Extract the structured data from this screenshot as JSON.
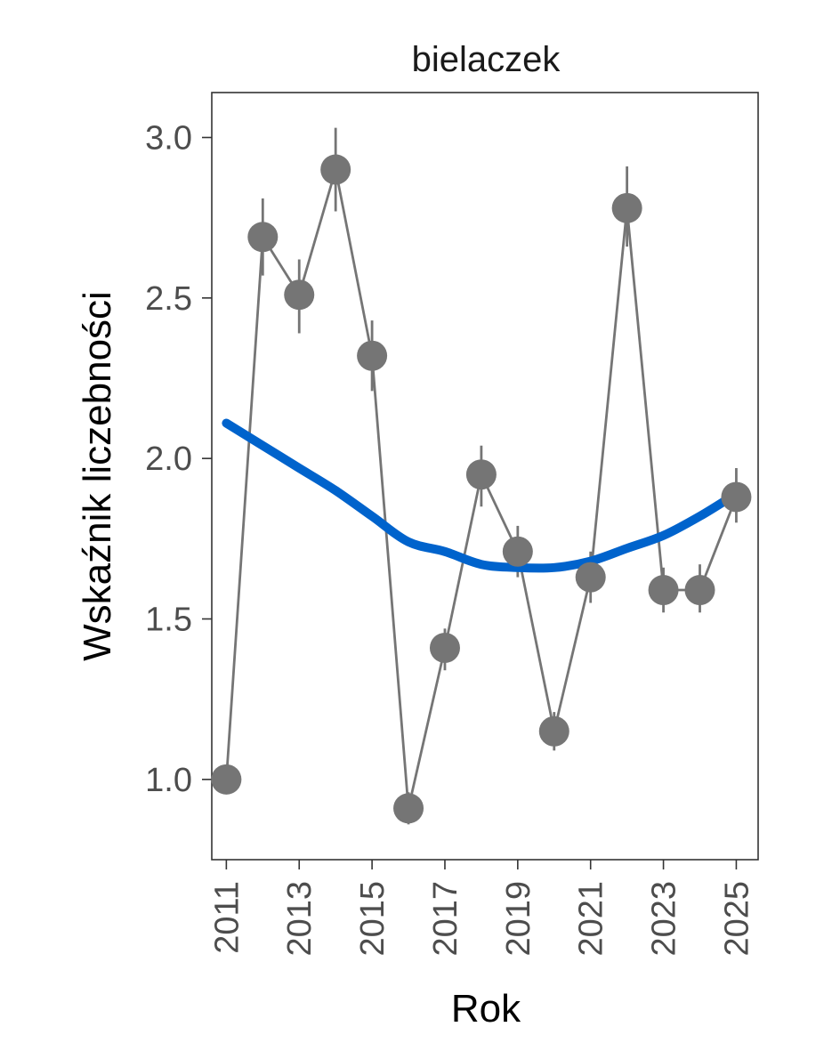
{
  "chart_data": {
    "type": "line",
    "title": "bielaczek",
    "xlabel": "Rok",
    "ylabel": "Wskaźnik liczebności",
    "x": [
      2011,
      2012,
      2013,
      2014,
      2015,
      2016,
      2017,
      2018,
      2019,
      2020,
      2021,
      2022,
      2023,
      2024,
      2025
    ],
    "xticks": [
      "2011",
      "2013",
      "2015",
      "2017",
      "2019",
      "2021",
      "2023",
      "2025"
    ],
    "yticks": [
      "1.0",
      "1.5",
      "2.0",
      "2.5",
      "3.0"
    ],
    "xlim": [
      2010.6,
      2025.6
    ],
    "ylim": [
      0.75,
      3.14
    ],
    "grid": false,
    "series": [
      {
        "values": [
          1.0,
          2.69,
          2.51,
          2.9,
          2.32,
          0.91,
          1.41,
          1.95,
          1.71,
          1.15,
          1.63,
          2.78,
          1.59,
          1.59,
          1.88
        ],
        "lower": [
          1.0,
          2.57,
          2.39,
          2.77,
          2.21,
          0.86,
          1.34,
          1.85,
          1.63,
          1.09,
          1.55,
          2.66,
          1.52,
          1.52,
          1.8
        ],
        "upper": [
          1.0,
          2.81,
          2.62,
          3.03,
          2.43,
          0.96,
          1.47,
          2.04,
          1.79,
          1.21,
          1.71,
          2.91,
          1.66,
          1.67,
          1.97
        ],
        "color": "#757575"
      }
    ],
    "trend": {
      "x": [
        2011,
        2012,
        2013,
        2014,
        2015,
        2016,
        2017,
        2018,
        2019,
        2020,
        2021,
        2022,
        2023,
        2024,
        2025
      ],
      "values": [
        2.11,
        2.04,
        1.97,
        1.9,
        1.82,
        1.74,
        1.71,
        1.67,
        1.66,
        1.66,
        1.68,
        1.72,
        1.76,
        1.82,
        1.89
      ],
      "color": "#0063CC"
    }
  }
}
